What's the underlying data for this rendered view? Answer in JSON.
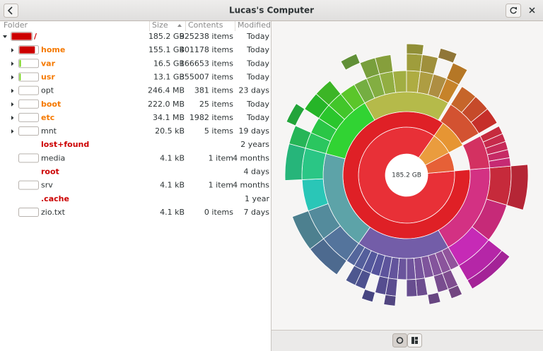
{
  "header": {
    "title": "Lucas's Computer"
  },
  "table": {
    "columns": [
      "Folder",
      "Size",
      "Contents",
      "Modified"
    ],
    "rows": [
      {
        "name": "/",
        "size": "185.2 GB",
        "contents": "925238 items",
        "modified": "Today",
        "color": "#cc0000"
      },
      {
        "name": "home",
        "size": "155.1 GB",
        "contents": "401178 items",
        "modified": "Today",
        "color": "#f57900"
      },
      {
        "name": "var",
        "size": "16.5 GB",
        "contents": "166653 items",
        "modified": "Today",
        "color": "#f57900"
      },
      {
        "name": "usr",
        "size": "13.1 GB",
        "contents": "355007 items",
        "modified": "Today",
        "color": "#f57900"
      },
      {
        "name": "opt",
        "size": "246.4 MB",
        "contents": "381 items",
        "modified": "23 days"
      },
      {
        "name": "boot",
        "size": "222.0 MB",
        "contents": "25 items",
        "modified": "Today",
        "color": "#f57900"
      },
      {
        "name": "etc",
        "size": "34.1 MB",
        "contents": "1982 items",
        "modified": "Today",
        "color": "#f57900"
      },
      {
        "name": "mnt",
        "size": "20.5 kB",
        "contents": "5 items",
        "modified": "19 days"
      },
      {
        "name": "lost+found",
        "modified": "2 years",
        "color": "#cc0000"
      },
      {
        "name": "media",
        "size": "4.1 kB",
        "contents": "1 item",
        "modified": "4 months"
      },
      {
        "name": "root",
        "modified": "4 days",
        "color": "#cc0000"
      },
      {
        "name": "srv",
        "size": "4.1 kB",
        "contents": "1 item",
        "modified": "4 months"
      },
      {
        "name": ".cache",
        "modified": "1 year",
        "color": "#cc0000"
      },
      {
        "name": "zio.txt",
        "size": "4.1 kB",
        "contents": "0 items",
        "modified": "7 days"
      }
    ]
  },
  "chart": {
    "center_label": "185.2 GB"
  }
}
